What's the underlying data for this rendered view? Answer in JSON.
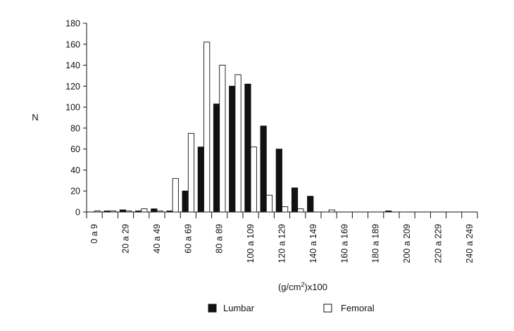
{
  "chart_data": {
    "type": "bar",
    "title": "",
    "ylabel": "N",
    "xlabel_parts": [
      "(g/cm",
      "2",
      ")x100"
    ],
    "ylim": [
      0,
      180
    ],
    "yticks": [
      0,
      20,
      40,
      60,
      80,
      100,
      120,
      140,
      160,
      180
    ],
    "grid": false,
    "legend_position": "bottom",
    "bins": [
      "0 a 9",
      "10 a 19",
      "20 a 29",
      "30 a 39",
      "40 a 49",
      "50 a 59",
      "60 a 69",
      "70 a 79",
      "80 a 89",
      "90 a 99",
      "100 a 109",
      "110 a 119",
      "120 a 129",
      "130 a 139",
      "140 a 149",
      "150 a 159",
      "160 a 169",
      "170 a 179",
      "180 a 189",
      "190 a 199",
      "200 a 209",
      "210 a 219",
      "220 a 229",
      "230 a 239",
      "240 a 249"
    ],
    "bin_labels": [
      "0 a 9",
      "20 a 29",
      "40 a 49",
      "60 a 69",
      "80 a 89",
      "100 a 109",
      "120 a 129",
      "140 a 149",
      "160 a 169",
      "180 a 189",
      "200 a 209",
      "220 a 229",
      "240 a 249"
    ],
    "series": [
      {
        "name": "Lumbar",
        "color": "#111111",
        "values": [
          0,
          1,
          2,
          1,
          3,
          1,
          20,
          62,
          103,
          120,
          122,
          82,
          60,
          23,
          15,
          0,
          0,
          0,
          0,
          1,
          0,
          0,
          0,
          0,
          0
        ]
      },
      {
        "name": "Femoral",
        "color": "#ffffff",
        "values": [
          1,
          1,
          1,
          3,
          1,
          32,
          75,
          162,
          140,
          131,
          62,
          16,
          5,
          3,
          0,
          2,
          0,
          0,
          0,
          0,
          0,
          0,
          0,
          0,
          0
        ]
      }
    ]
  }
}
